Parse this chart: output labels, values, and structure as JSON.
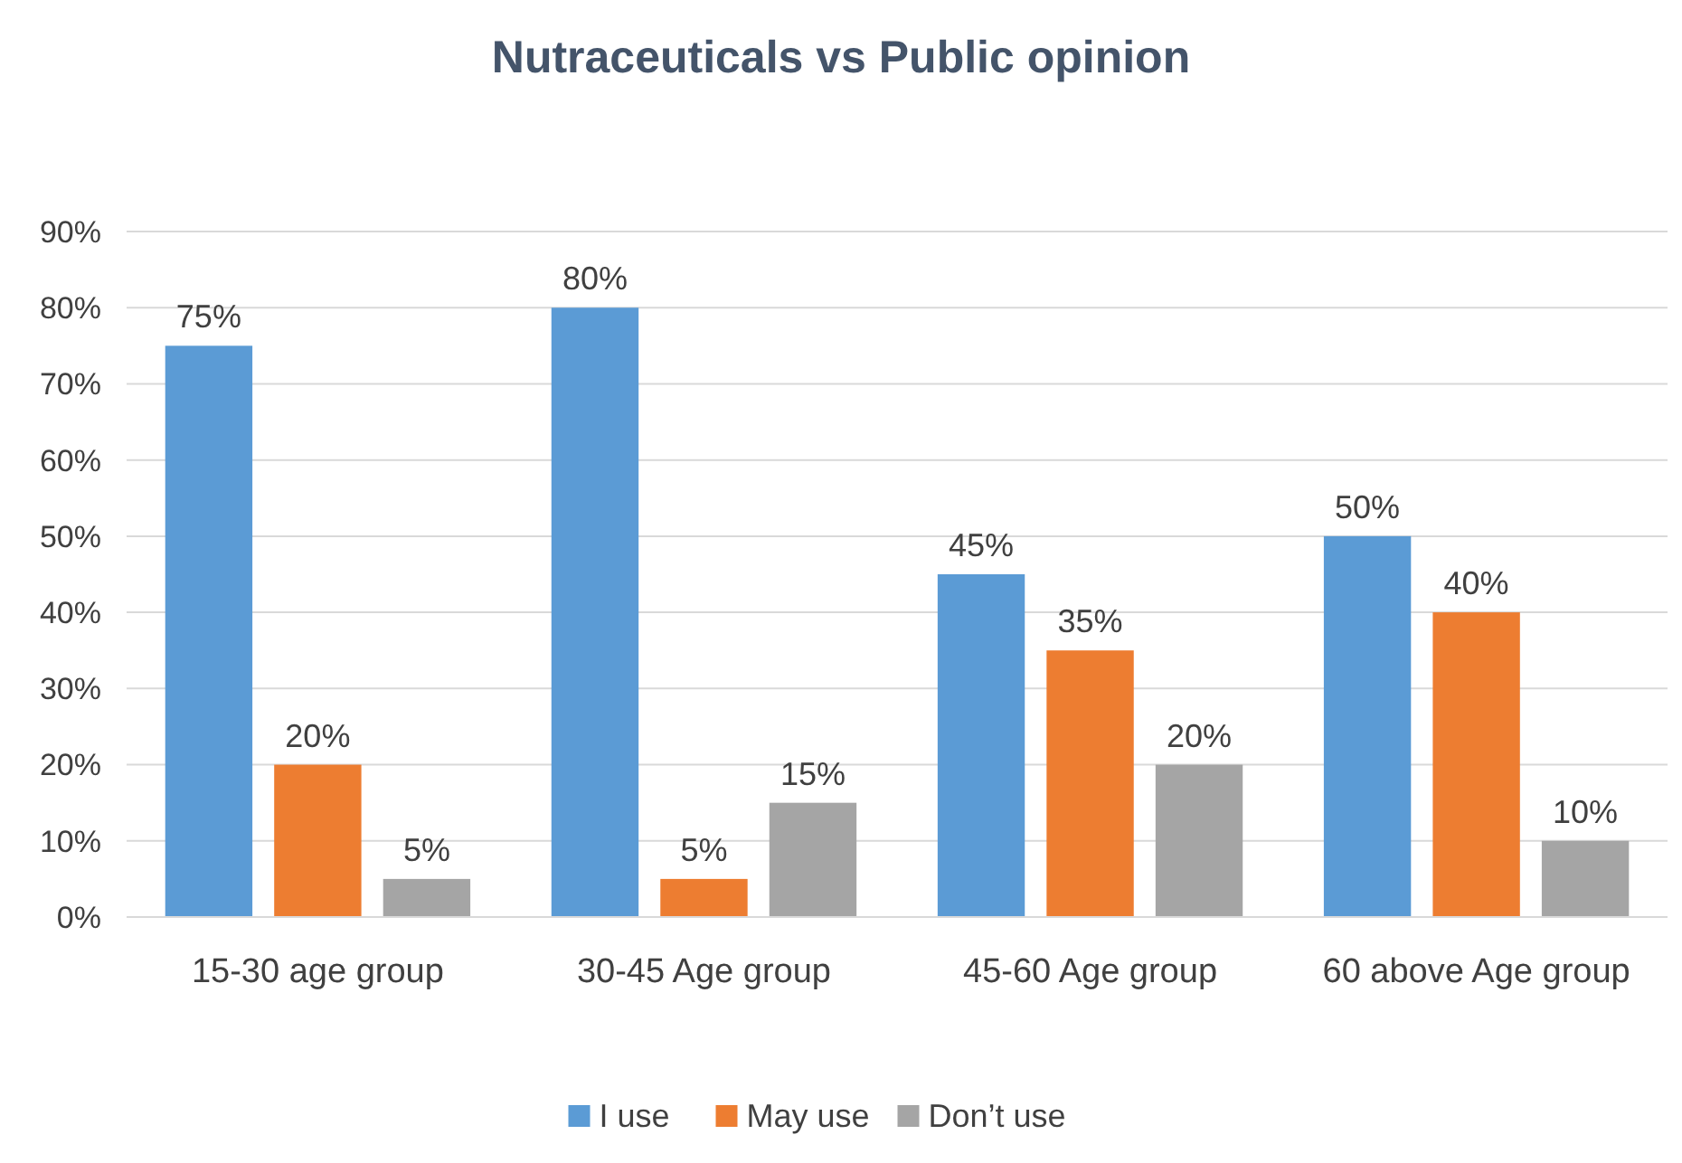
{
  "chart_data": {
    "type": "bar",
    "title": "Nutraceuticals vs Public opinion",
    "categories": [
      "15-30 age group",
      "30-45 Age group",
      "45-60 Age group",
      "60 above Age group"
    ],
    "series": [
      {
        "name": "I use",
        "color": "#5b9bd5",
        "values": [
          75,
          80,
          45,
          50
        ],
        "value_labels": [
          "75%",
          "80%",
          "45%",
          "50%"
        ]
      },
      {
        "name": "May use",
        "color": "#ed7d31",
        "values": [
          20,
          5,
          35,
          40
        ],
        "value_labels": [
          "20%",
          "5%",
          "35%",
          "40%"
        ]
      },
      {
        "name": "Don’t use",
        "color": "#a5a5a5",
        "values": [
          5,
          15,
          20,
          10
        ],
        "value_labels": [
          "5%",
          "15%",
          "20%",
          "10%"
        ]
      }
    ],
    "ylim": [
      0,
      90
    ],
    "yticks": [
      {
        "value": 0,
        "label": "0%"
      },
      {
        "value": 10,
        "label": "10%"
      },
      {
        "value": 20,
        "label": "20%"
      },
      {
        "value": 30,
        "label": "30%"
      },
      {
        "value": 40,
        "label": "40%"
      },
      {
        "value": 50,
        "label": "50%"
      },
      {
        "value": 60,
        "label": "60%"
      },
      {
        "value": 70,
        "label": "70%"
      },
      {
        "value": 80,
        "label": "80%"
      },
      {
        "value": 90,
        "label": "90%"
      }
    ],
    "grid": "y",
    "legend": "bottom"
  }
}
